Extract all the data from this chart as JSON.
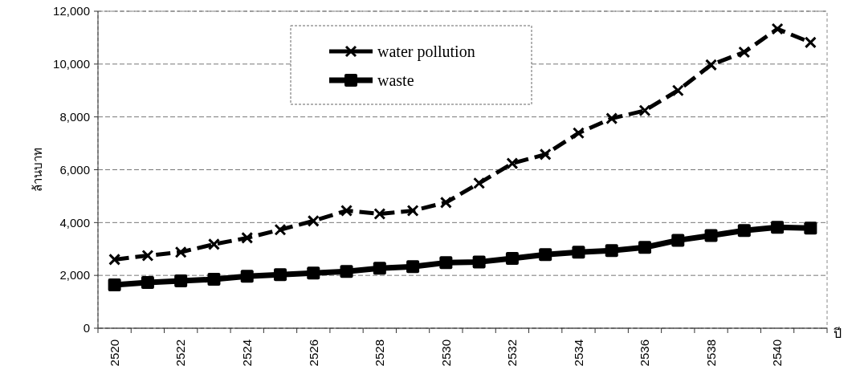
{
  "chart_data": {
    "type": "line",
    "ylabel": "ล้านบาท",
    "xlabel": "ปี",
    "categories": [
      "2520",
      null,
      "2522",
      null,
      "2524",
      null,
      "2526",
      null,
      "2528",
      null,
      "2530",
      null,
      "2532",
      null,
      "2534",
      null,
      "2536",
      null,
      "2538",
      null,
      "2540",
      null
    ],
    "series": [
      {
        "name": "water pollution",
        "color": "#000000",
        "marker": "cross",
        "line_style": "dashed",
        "values": [
          2600,
          2750,
          2880,
          3180,
          3420,
          3730,
          4060,
          4450,
          4330,
          4450,
          4760,
          5490,
          6240,
          6580,
          7390,
          7940,
          8240,
          9000,
          9970,
          10450,
          11330,
          10820
        ]
      },
      {
        "name": "waste",
        "color": "#000000",
        "marker": "square",
        "line_style": "solid",
        "values": [
          1640,
          1730,
          1790,
          1850,
          1970,
          2030,
          2090,
          2150,
          2270,
          2330,
          2480,
          2510,
          2640,
          2790,
          2880,
          2940,
          3060,
          3330,
          3510,
          3700,
          3820,
          3790
        ]
      }
    ],
    "ylim": [
      0,
      12000
    ],
    "yticks": [
      {
        "value": 0,
        "label": "0"
      },
      {
        "value": 2000,
        "label": "2,000"
      },
      {
        "value": 4000,
        "label": "4,000"
      },
      {
        "value": 6000,
        "label": "6,000"
      },
      {
        "value": 8000,
        "label": "8,000"
      },
      {
        "value": 10000,
        "label": "10,000"
      },
      {
        "value": 12000,
        "label": "12,000"
      }
    ],
    "grid": "y",
    "legend": "top"
  }
}
